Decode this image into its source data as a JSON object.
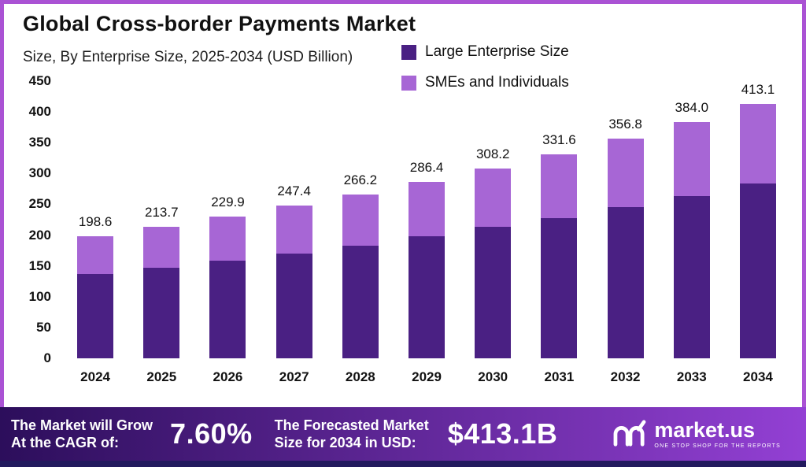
{
  "header": {
    "title": "Global Cross-border Payments Market",
    "subtitle": "Size, By Enterprise Size, 2025-2034 (USD Billion)"
  },
  "legend": [
    {
      "label": "Large Enterprise Size",
      "color": "#4a2083"
    },
    {
      "label": "SMEs and Individuals",
      "color": "#a766d5"
    }
  ],
  "chart_data": {
    "type": "bar",
    "stacked": true,
    "title": "Global Cross-border Payments Market",
    "subtitle": "Size, By Enterprise Size, 2025-2034 (USD Billion)",
    "xlabel": "",
    "ylabel": "USD Billion",
    "categories": [
      "2024",
      "2025",
      "2026",
      "2027",
      "2028",
      "2029",
      "2030",
      "2031",
      "2032",
      "2033",
      "2034"
    ],
    "series": [
      {
        "name": "Large Enterprise Size",
        "color": "#4a2083",
        "values": [
          137.0,
          147.0,
          158.0,
          170.0,
          183.0,
          198.0,
          213.0,
          228.0,
          245.0,
          264.0,
          284.0
        ]
      },
      {
        "name": "SMEs and Individuals",
        "color": "#a766d5",
        "values": [
          61.6,
          66.7,
          71.9,
          77.4,
          83.2,
          88.4,
          95.2,
          103.6,
          111.8,
          120.0,
          129.1
        ]
      }
    ],
    "totals": [
      198.6,
      213.7,
      229.9,
      247.4,
      266.2,
      286.4,
      308.2,
      331.6,
      356.8,
      384.0,
      413.1
    ],
    "total_labels": [
      "198.6",
      "213.7",
      "229.9",
      "247.4",
      "266.2",
      "286.4",
      "308.2",
      "331.6",
      "356.8",
      "384.0",
      "413.1"
    ],
    "ylim": [
      0,
      450
    ],
    "yticks": [
      0,
      50,
      100,
      150,
      200,
      250,
      300,
      350,
      400,
      450
    ],
    "grid": false,
    "legend_position": "top-right"
  },
  "footer": {
    "cagr_label_line1": "The Market will Grow",
    "cagr_label_line2": "At the CAGR of:",
    "cagr_value": "7.60%",
    "forecast_label_line1": "The Forecasted Market",
    "forecast_label_line2": "Size for 2034 in USD:",
    "forecast_value": "$413.1B",
    "brand": "market.us",
    "brand_tagline": "ONE STOP SHOP FOR THE REPORTS"
  },
  "colors": {
    "frame": "#aa52d4",
    "large_segment": "#4a2083",
    "smes_segment": "#a766d5",
    "footer_gradient_left": "#2c0e5b",
    "footer_gradient_right": "#9340d4",
    "bottom_strip": "#221a5e"
  }
}
